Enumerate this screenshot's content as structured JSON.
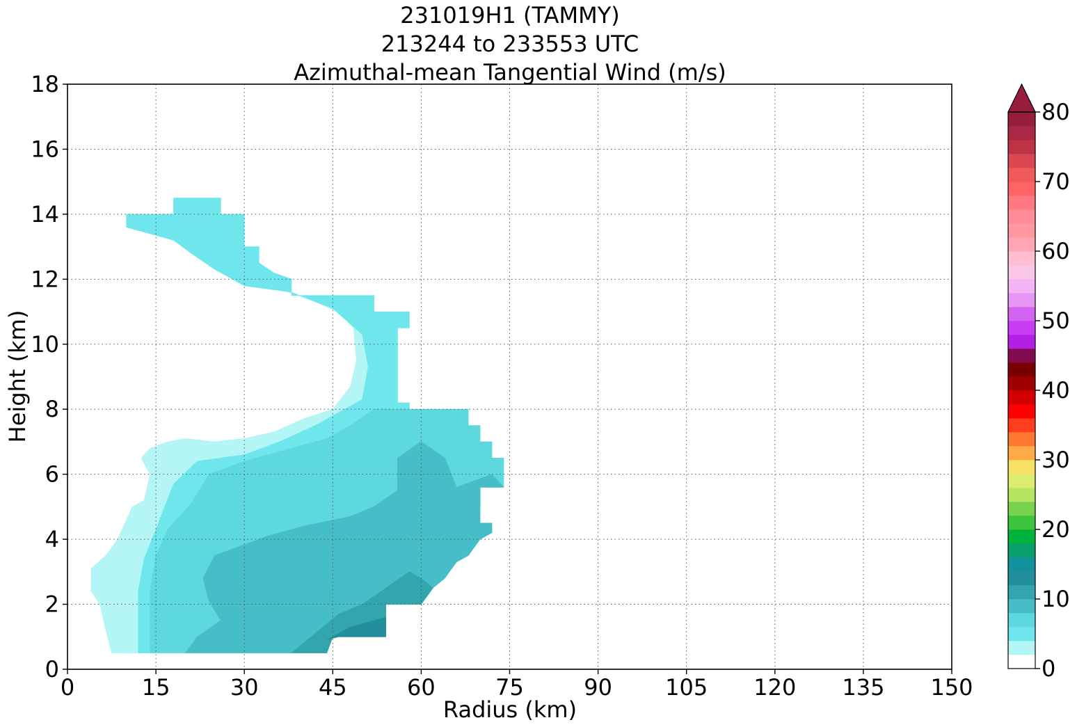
{
  "chart_data": {
    "type": "heatmap",
    "plot_style": "filled contour",
    "title_lines": [
      "231019H1 (TAMMY)",
      "213244 to 233553 UTC",
      "Azimuthal-mean Tangential Wind (m/s)"
    ],
    "xlabel": "Radius (km)",
    "ylabel": "Height (km)",
    "xlim": [
      0,
      150
    ],
    "ylim": [
      0,
      18
    ],
    "xticks": [
      0,
      15,
      30,
      45,
      60,
      75,
      90,
      105,
      120,
      135,
      150
    ],
    "yticks": [
      0,
      2,
      4,
      6,
      8,
      10,
      12,
      14,
      16,
      18
    ],
    "grid": true,
    "colorbar": {
      "range": [
        0,
        80
      ],
      "step": 2,
      "extend": "max",
      "ticks": [
        0,
        10,
        20,
        30,
        40,
        50,
        60,
        70,
        80
      ],
      "colors": [
        "#ffffff",
        "#b4f5f5",
        "#6fe6ec",
        "#5cd8de",
        "#46bec8",
        "#32a5ad",
        "#238f9d",
        "#14919f",
        "#0a9e6a",
        "#00b33c",
        "#3cc43c",
        "#78d250",
        "#b4e664",
        "#dcec6e",
        "#f5e164",
        "#ffaa46",
        "#ff7832",
        "#ff3c1e",
        "#ff0000",
        "#d20000",
        "#a00000",
        "#780000",
        "#820a50",
        "#b41ee6",
        "#c83cf5",
        "#d264f0",
        "#e696f5",
        "#f5b4f5",
        "#fac8e6",
        "#ffbed2",
        "#ffa5b4",
        "#ff96a0",
        "#ff8c96",
        "#ff7882",
        "#ff6464",
        "#f05a5a",
        "#dc4650",
        "#be3246",
        "#aa2846",
        "#961e3c"
      ],
      "extend_color": "#961e3c"
    },
    "contour_levels": [
      {
        "min": 2,
        "max": 4,
        "color": "#b4f5f5",
        "region": [
          [
            7.5,
            0.5
          ],
          [
            6.5,
            1.2
          ],
          [
            5.5,
            2
          ],
          [
            4,
            2.4
          ],
          [
            4,
            3.1
          ],
          [
            6.5,
            3.5
          ],
          [
            8.5,
            4
          ],
          [
            11,
            5
          ],
          [
            13,
            5.2
          ],
          [
            14,
            6
          ],
          [
            12.5,
            6.5
          ],
          [
            14,
            6.8
          ],
          [
            17,
            7
          ],
          [
            20,
            7.1
          ],
          [
            25,
            7.0
          ],
          [
            30,
            7.1
          ],
          [
            35,
            7.3
          ],
          [
            40,
            7.7
          ],
          [
            45,
            8
          ],
          [
            48,
            8.7
          ],
          [
            49,
            9.5
          ],
          [
            48.5,
            10.5
          ],
          [
            46,
            11
          ],
          [
            42,
            11.3
          ],
          [
            36,
            11.7
          ],
          [
            30,
            12.1
          ],
          [
            27,
            12.5
          ],
          [
            25,
            13
          ],
          [
            21,
            13.1
          ],
          [
            19,
            13.5
          ],
          [
            17.5,
            13.8
          ],
          [
            10,
            14
          ],
          [
            10,
            13.6
          ],
          [
            14,
            13.4
          ],
          [
            18,
            13.2
          ],
          [
            21,
            12.8
          ],
          [
            25,
            12.3
          ],
          [
            30,
            11.8
          ],
          [
            38,
            11.6
          ],
          [
            45,
            11.1
          ],
          [
            50,
            10.3
          ],
          [
            51,
            9.3
          ],
          [
            50,
            8.3
          ],
          [
            46,
            7.9
          ],
          [
            42,
            7.5
          ],
          [
            36,
            7
          ],
          [
            30,
            6.6
          ],
          [
            22,
            6.4
          ],
          [
            18,
            5.7
          ],
          [
            15,
            4.3
          ],
          [
            13,
            3.4
          ],
          [
            12,
            2.4
          ],
          [
            12,
            0.5
          ]
        ]
      },
      {
        "min": 4,
        "max": 6,
        "color": "#6fe6ec",
        "region": [
          [
            12,
            0.5
          ],
          [
            12,
            2.4
          ],
          [
            13,
            3.4
          ],
          [
            15,
            4.3
          ],
          [
            18,
            5.7
          ],
          [
            22,
            6.4
          ],
          [
            30,
            6.6
          ],
          [
            36,
            7
          ],
          [
            42,
            7.5
          ],
          [
            46,
            7.9
          ],
          [
            50,
            8.3
          ],
          [
            51,
            9.3
          ],
          [
            50,
            10.3
          ],
          [
            45,
            11.1
          ],
          [
            38,
            11.6
          ],
          [
            30,
            11.8
          ],
          [
            25,
            12.3
          ],
          [
            21,
            12.8
          ],
          [
            18,
            13.2
          ],
          [
            14,
            13.4
          ],
          [
            10,
            13.6
          ],
          [
            10,
            14
          ],
          [
            18,
            14
          ],
          [
            18,
            14.5
          ],
          [
            26,
            14.5
          ],
          [
            26,
            14
          ],
          [
            30,
            14
          ],
          [
            30,
            13
          ],
          [
            32.5,
            13
          ],
          [
            32.5,
            12.5
          ],
          [
            35,
            12.2
          ],
          [
            38,
            12
          ],
          [
            38,
            11.5
          ],
          [
            52,
            11.5
          ],
          [
            52,
            11
          ],
          [
            58,
            11
          ],
          [
            58,
            10.5
          ],
          [
            56,
            10.5
          ],
          [
            56,
            8.2
          ],
          [
            58,
            8.2
          ],
          [
            58,
            8
          ],
          [
            52,
            8
          ],
          [
            48,
            7.5
          ],
          [
            44,
            7.1
          ],
          [
            38,
            6.8
          ],
          [
            30,
            6.4
          ],
          [
            24,
            6
          ],
          [
            21,
            5.1
          ],
          [
            17,
            4.3
          ],
          [
            15,
            3.5
          ],
          [
            14,
            2.4
          ],
          [
            14,
            0.5
          ]
        ]
      },
      {
        "min": 6,
        "max": 8,
        "color": "#5cd8de",
        "region": [
          [
            14,
            0.5
          ],
          [
            14,
            2.4
          ],
          [
            15,
            3.5
          ],
          [
            17,
            4.3
          ],
          [
            21,
            5.1
          ],
          [
            24,
            6
          ],
          [
            30,
            6.4
          ],
          [
            38,
            6.8
          ],
          [
            44,
            7.1
          ],
          [
            48,
            7.5
          ],
          [
            52,
            8
          ],
          [
            68,
            8
          ],
          [
            68,
            7.5
          ],
          [
            70,
            7.5
          ],
          [
            70,
            7
          ],
          [
            72,
            7
          ],
          [
            72,
            6.5
          ],
          [
            74,
            6.5
          ],
          [
            74,
            5.6
          ],
          [
            70,
            5.6
          ],
          [
            70,
            5
          ],
          [
            66,
            5
          ],
          [
            60,
            5
          ],
          [
            56,
            4.6
          ],
          [
            50,
            4.3
          ],
          [
            44,
            4
          ],
          [
            36,
            3.8
          ],
          [
            30,
            3.4
          ],
          [
            26,
            3
          ],
          [
            26,
            1.5
          ],
          [
            22,
            1
          ],
          [
            20,
            0.5
          ]
        ]
      },
      {
        "min": 8,
        "max": 10,
        "color": "#46bec8",
        "region": [
          [
            20,
            0.5
          ],
          [
            22,
            1
          ],
          [
            26,
            1.5
          ],
          [
            26,
            3
          ],
          [
            30,
            3.4
          ],
          [
            36,
            3.8
          ],
          [
            44,
            4
          ],
          [
            50,
            4.3
          ],
          [
            56,
            4.6
          ],
          [
            60,
            5
          ],
          [
            66,
            5
          ],
          [
            70,
            5
          ],
          [
            70,
            5.6
          ],
          [
            74,
            5.6
          ],
          [
            72,
            6
          ],
          [
            66,
            5.6
          ],
          [
            64,
            6.5
          ],
          [
            60,
            7
          ],
          [
            56,
            6.5
          ],
          [
            56,
            5.5
          ],
          [
            52,
            5
          ],
          [
            48,
            4.7
          ],
          [
            40,
            4.4
          ],
          [
            34,
            4.1
          ],
          [
            28,
            3.7
          ],
          [
            25,
            3.5
          ],
          [
            23,
            2.8
          ],
          [
            24,
            2.1
          ],
          [
            26,
            1.5
          ],
          [
            28,
            1
          ],
          [
            30,
            0.5
          ]
        ]
      },
      {
        "min": 8,
        "max": 10,
        "color": "#46bec8",
        "region": [
          [
            30,
            0.5
          ],
          [
            28,
            1
          ],
          [
            26,
            1.5
          ],
          [
            24,
            2.1
          ],
          [
            23,
            2.8
          ],
          [
            25,
            3.5
          ],
          [
            28,
            3.7
          ],
          [
            34,
            4.1
          ],
          [
            40,
            4.4
          ],
          [
            48,
            4.7
          ],
          [
            52,
            5
          ],
          [
            56,
            5.5
          ],
          [
            56,
            6.5
          ],
          [
            60,
            7
          ],
          [
            64,
            6.5
          ],
          [
            66,
            5.6
          ],
          [
            72,
            6
          ],
          [
            70,
            5.6
          ],
          [
            70,
            4.5
          ],
          [
            72,
            4.5
          ],
          [
            72,
            4.2
          ],
          [
            70,
            4
          ],
          [
            68,
            3.5
          ],
          [
            66,
            3.3
          ],
          [
            64,
            2.8
          ],
          [
            62,
            2.5
          ],
          [
            60,
            2
          ],
          [
            54,
            2
          ],
          [
            54,
            1
          ],
          [
            45,
            1
          ],
          [
            44,
            0.5
          ]
        ]
      },
      {
        "min": 10,
        "max": 12,
        "color": "#32a5ad",
        "region": [
          [
            44,
            0.5
          ],
          [
            45,
            1
          ],
          [
            54,
            1
          ],
          [
            54,
            2
          ],
          [
            60,
            2
          ],
          [
            62,
            2.5
          ],
          [
            60,
            2.8
          ],
          [
            58,
            3
          ],
          [
            54,
            2.5
          ],
          [
            50,
            2
          ],
          [
            46,
            1.7
          ],
          [
            42,
            1.1
          ],
          [
            38,
            0.5
          ]
        ]
      },
      {
        "min": 12,
        "max": 14,
        "color": "#238f9d",
        "region": [
          [
            44,
            0.9
          ],
          [
            48,
            1.3
          ],
          [
            52,
            1.5
          ],
          [
            54,
            1.6
          ],
          [
            54,
            1
          ],
          [
            50,
            1
          ],
          [
            46,
            1
          ]
        ]
      }
    ]
  }
}
